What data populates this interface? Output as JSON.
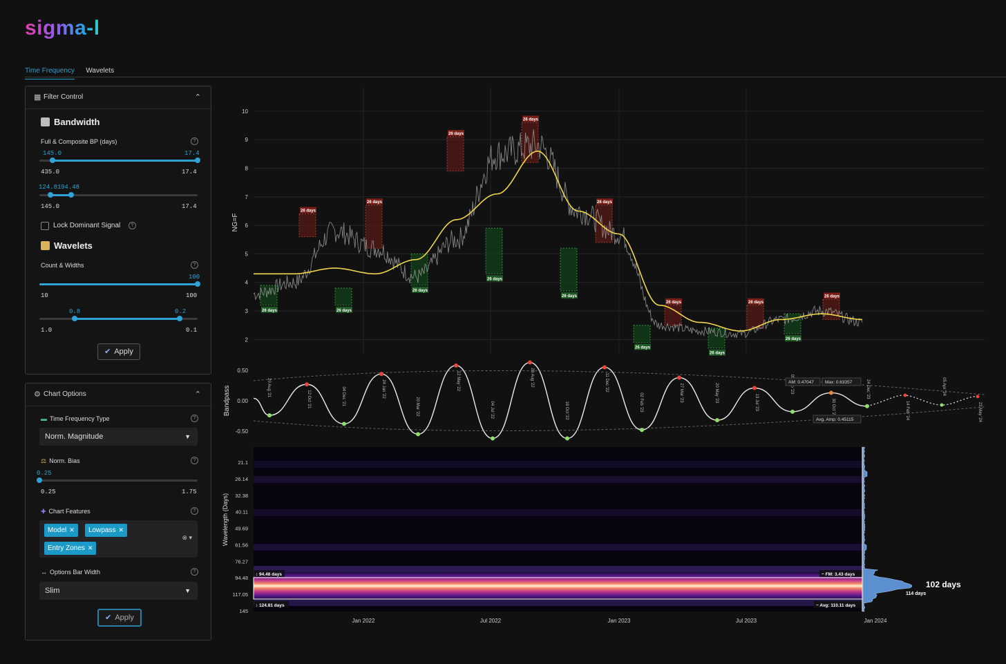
{
  "app": {
    "logo_text": "sigma-l"
  },
  "tabs": [
    {
      "label": "Time Frequency",
      "active": true
    },
    {
      "label": "Wavelets",
      "active": false
    }
  ],
  "filter_panel": {
    "title": "Filter Control",
    "bandwidth": {
      "title": "Bandwidth",
      "label": "Full & Composite BP (days)",
      "slider1": {
        "low_value": "145.0",
        "high_value": "17.4",
        "min_label": "435.0",
        "max_label": "17.4"
      },
      "slider2": {
        "low_value": "124.81",
        "high_value": "94.48",
        "min_label": "145.0",
        "max_label": "17.4"
      }
    },
    "lock_label": "Lock Dominant Signal",
    "wavelets": {
      "title": "Wavelets",
      "label": "Count & Widths",
      "slider1": {
        "value": "100",
        "min_label": "10",
        "max_label": "100"
      },
      "slider2": {
        "low_value": "0.8",
        "high_value": "0.2",
        "min_label": "1.0",
        "max_label": "0.1"
      }
    },
    "apply_label": "Apply"
  },
  "chart_options": {
    "title": "Chart Options",
    "tf_type_label": "Time Frequency Type",
    "tf_type_value": "Norm. Magnitude",
    "bias_label": "Norm. Bias",
    "bias": {
      "value": "0.25",
      "min_label": "0.25",
      "max_label": "1.75"
    },
    "features_label": "Chart Features",
    "features": [
      "Model",
      "Lowpass",
      "Entry Zones"
    ],
    "bar_width_label": "Options Bar Width",
    "bar_width_value": "Slim",
    "apply_label": "Apply"
  },
  "chart_data": [
    {
      "type": "line",
      "ylabel": "NG=F",
      "yticks": [
        2,
        3,
        4,
        5,
        6,
        7,
        8,
        9,
        10
      ],
      "ylim": [
        1.5,
        10.7
      ],
      "x": [
        "2021-06",
        "2021-08",
        "2021-10",
        "2021-12",
        "2022-02",
        "2022-04",
        "2022-06",
        "2022-08",
        "2022-10",
        "2022-12",
        "2023-02",
        "2023-04",
        "2023-06",
        "2023-08",
        "2023-10",
        "2023-12"
      ],
      "series": [
        {
          "values": [
            3.6,
            4.0,
            5.8,
            5.2,
            4.2,
            5.5,
            8.5,
            8.8,
            6.5,
            5.7,
            2.5,
            2.3,
            2.2,
            2.7,
            3.0,
            2.6
          ],
          "color": "#9a9a9a"
        },
        {
          "values": [
            4.3,
            4.3,
            4.5,
            4.3,
            4.8,
            6.2,
            7.1,
            8.6,
            6.5,
            5.7,
            3.2,
            2.6,
            2.3,
            2.7,
            2.9,
            2.7
          ],
          "color": "#f2d64a"
        }
      ],
      "zone_label": "26 days",
      "sell_zones": [
        "26 days",
        "26 days",
        "26 days",
        "26 days",
        "26 days",
        "26 days",
        "26 days",
        "26 days",
        "26 days"
      ],
      "buy_zones": [
        "26 days",
        "26 days",
        "26 days",
        "26 days",
        "26 days",
        "26 days",
        "26 days",
        "26 days",
        "26 days"
      ]
    },
    {
      "type": "line",
      "ylabel": "Bandpass",
      "yticks": [
        "0.50",
        "0.00",
        "-0.50"
      ],
      "ylim": [
        -0.7,
        0.7
      ],
      "peaks": [
        "12 Oct '21",
        "24 Jan '22",
        "12 May '22",
        "28 Aug '22",
        "11 Dec '22",
        "27 Mar '23",
        "13 Jul '23",
        "30 Oct '23"
      ],
      "troughs": [
        "20 Aug '21",
        "04 Dec '21",
        "20 Mar '22",
        "04 Jul '22",
        "18 Oct '22",
        "02 Feb '23",
        "20 May '23",
        "05 Sep '23"
      ],
      "projections": [
        "24 Dec '23",
        "14 Feb '24",
        "05 Apr '24",
        "23 May '24"
      ],
      "stats": {
        "am": "AM: 0.47047",
        "max": "Max: 0.63357",
        "avg_amp": "Avg. Amp: 0.45115"
      }
    },
    {
      "type": "heatmap",
      "ylabel": "Wavelength (Days)",
      "yticks": [
        "21.1",
        "26.14",
        "32.38",
        "40.11",
        "49.69",
        "61.56",
        "76.27",
        "94.48",
        "117.05",
        "145"
      ],
      "xticks": [
        "Jan 2022",
        "Jul 2022",
        "Jan 2023",
        "Jul 2023",
        "Jan 2024"
      ],
      "band_top": "94.48 days",
      "band_bottom": "124.81 days",
      "fm": "FM: 3.43 days",
      "avg": "Avg: 110.11 days",
      "dominant": "102 days",
      "secondary": "114 days"
    }
  ]
}
